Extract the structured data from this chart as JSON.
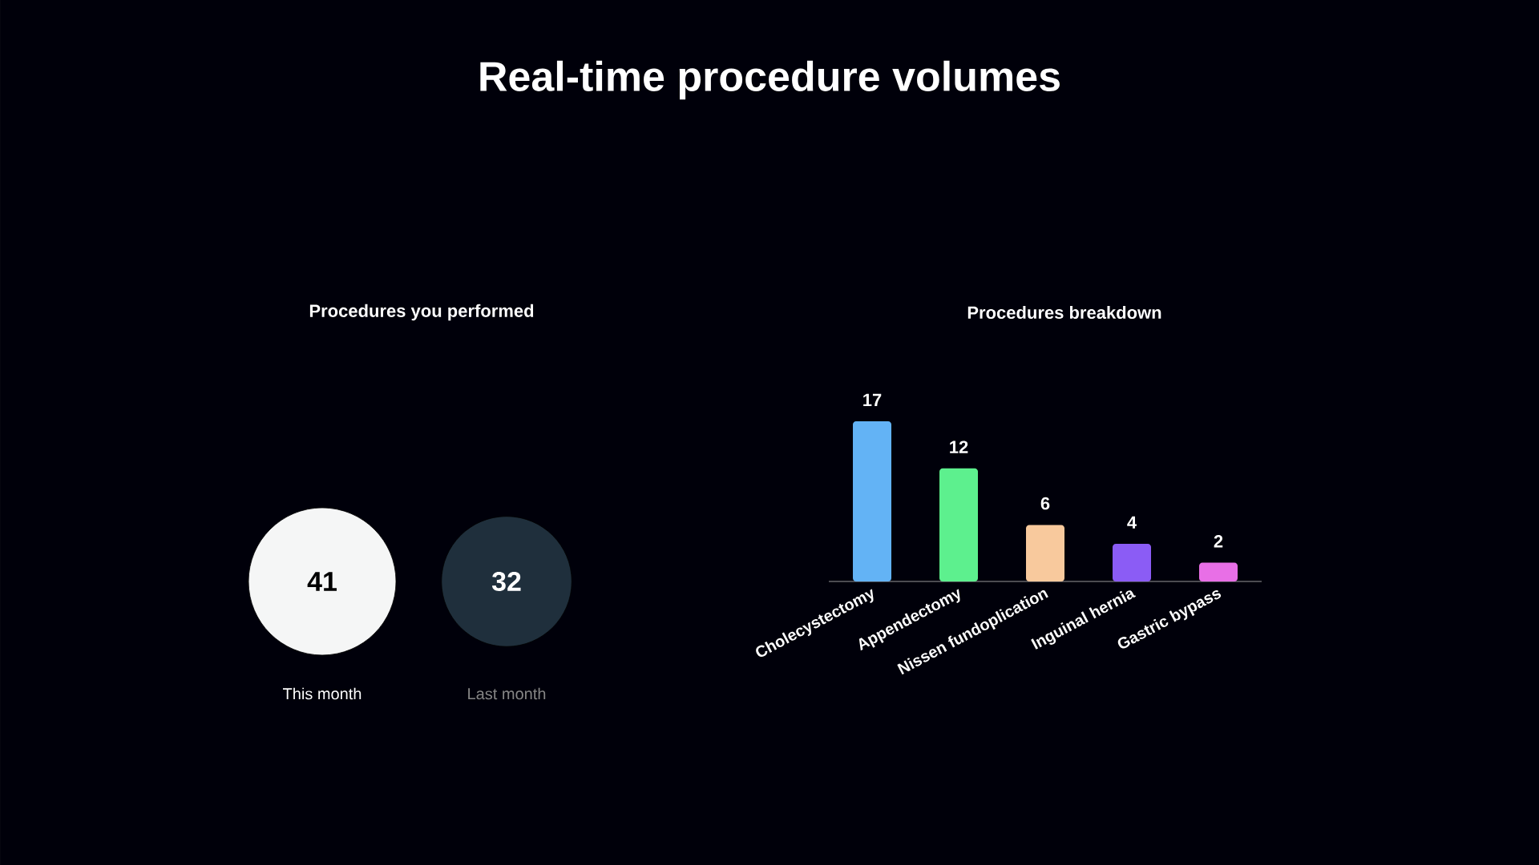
{
  "chart_data": [
    {
      "type": "other",
      "title": "Real-time procedure volumes",
      "subtitle": "Procedures you performed",
      "categories": [
        "This month",
        "Last month"
      ],
      "values": [
        41,
        32
      ],
      "colors": [
        "#f5f6f6",
        "#1f2f3c"
      ],
      "data_labels": true
    },
    {
      "type": "bar",
      "title": "Procedures breakdown",
      "categories": [
        "Cholecystectomy",
        "Appendectomy",
        "Nissen fundoplication",
        "Inguinal hernia",
        "Gastric bypass"
      ],
      "values": [
        17,
        12,
        6,
        4,
        2
      ],
      "colors": [
        "#63b3f5",
        "#5df08e",
        "#f8c99d",
        "#8b5cf5",
        "#e86fe6"
      ],
      "data_labels": true
    }
  ]
}
